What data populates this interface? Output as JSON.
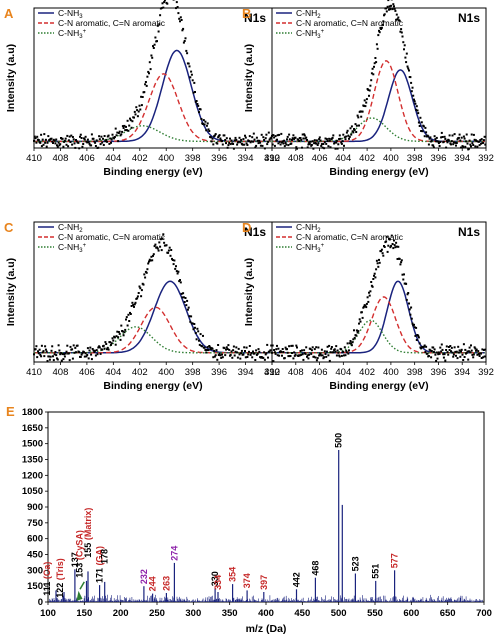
{
  "colors": {
    "panel_letter": "#e8841d",
    "nh2": "#1a237e",
    "aromatic": "#d32f2f",
    "nh3": "#2e7d32",
    "data": "#000000",
    "ms_line": "#1a237e",
    "label_black": "#000000",
    "label_red": "#c62828",
    "label_purple": "#8e24aa",
    "arrow": "#2e7d32"
  },
  "chart_data": [
    {
      "id": "A",
      "type": "line",
      "letter": "A",
      "title": "N1s",
      "xlabel": "Binding energy (eV)",
      "ylabel": "Intensity (a.u)",
      "xlim": [
        410,
        392
      ],
      "x_reversed": true,
      "xticks": [
        "410",
        "408",
        "406",
        "404",
        "402",
        "400",
        "398",
        "396",
        "394",
        "392"
      ],
      "legend": [
        {
          "label": "C-NH",
          "sub": "3",
          "sup": "",
          "style": "solid",
          "color": "#1a237e"
        },
        {
          "label": "C-N aromatic, C=N aromatic",
          "sub": "",
          "sup": "",
          "style": "dashed",
          "color": "#d32f2f"
        },
        {
          "label": "C-NH",
          "sub": "3",
          "sup": "+",
          "style": "dotted",
          "color": "#2e7d32"
        }
      ],
      "peaks": [
        {
          "name": "C-NH",
          "center": 399.2,
          "height": 0.7,
          "width": 1.1
        },
        {
          "name": "C-N aromatic, C=N aromatic",
          "center": 400.2,
          "height": 0.52,
          "width": 1.1
        },
        {
          "name": "C-NH",
          "center": 401.8,
          "height": 0.12,
          "width": 1.3
        }
      ],
      "baseline": 0.02,
      "ylim": [
        0,
        1
      ]
    },
    {
      "id": "B",
      "type": "line",
      "letter": "B",
      "title": "N1s",
      "xlabel": "Binding energy (eV)",
      "ylabel": "Intensity (a.u)",
      "xlim": [
        410,
        392
      ],
      "x_reversed": true,
      "xticks": [
        "410",
        "408",
        "406",
        "404",
        "402",
        "400",
        "398",
        "396",
        "394",
        "392"
      ],
      "legend": [
        {
          "label": "C-NH",
          "sub": "2",
          "sup": "",
          "style": "solid",
          "color": "#1a237e"
        },
        {
          "label": "C-N aromatic, C=N aromatic",
          "sub": "",
          "sup": "",
          "style": "dashed",
          "color": "#d32f2f"
        },
        {
          "label": "C-NH",
          "sub": "3",
          "sup": "+",
          "style": "dotted",
          "color": "#2e7d32"
        }
      ],
      "peaks": [
        {
          "name": "C-NH",
          "center": 399.2,
          "height": 0.55,
          "width": 1.0
        },
        {
          "name": "C-N aromatic, C=N aromatic",
          "center": 400.4,
          "height": 0.62,
          "width": 1.0
        },
        {
          "name": "C-NH",
          "center": 401.6,
          "height": 0.18,
          "width": 1.2
        }
      ],
      "baseline": 0.02,
      "ylim": [
        0,
        1
      ]
    },
    {
      "id": "C",
      "type": "line",
      "letter": "C",
      "title": "N1s",
      "xlabel": "Binding energy (eV)",
      "ylabel": "Intensity (a.u)",
      "xlim": [
        410,
        392
      ],
      "x_reversed": true,
      "xticks": [
        "410",
        "408",
        "406",
        "404",
        "402",
        "400",
        "398",
        "396",
        "394",
        "392"
      ],
      "legend": [
        {
          "label": "C-NH",
          "sub": "2",
          "sup": "",
          "style": "solid",
          "color": "#1a237e"
        },
        {
          "label": "C-N aromatic, C=N aromatic",
          "sub": "",
          "sup": "",
          "style": "dashed",
          "color": "#d32f2f"
        },
        {
          "label": "C-NH",
          "sub": "3",
          "sup": "+",
          "style": "dotted",
          "color": "#2e7d32"
        }
      ],
      "peaks": [
        {
          "name": "C-NH",
          "center": 399.7,
          "height": 0.55,
          "width": 1.2
        },
        {
          "name": "C-N aromatic, C=N aromatic",
          "center": 400.8,
          "height": 0.35,
          "width": 1.1
        },
        {
          "name": "C-NH",
          "center": 402.3,
          "height": 0.2,
          "width": 1.2
        }
      ],
      "baseline": 0.04,
      "ylim": [
        0,
        1
      ]
    },
    {
      "id": "D",
      "type": "line",
      "letter": "D",
      "title": "N1s",
      "xlabel": "Binding energy (eV)",
      "ylabel": "Intensity (a.u)",
      "xlim": [
        410,
        392
      ],
      "x_reversed": true,
      "xticks": [
        "410",
        "408",
        "406",
        "404",
        "402",
        "400",
        "398",
        "396",
        "394",
        "392"
      ],
      "legend": [
        {
          "label": "C-NH",
          "sub": "2",
          "sup": "",
          "style": "solid",
          "color": "#1a237e"
        },
        {
          "label": "C-N aromatic, C=N aromatic",
          "sub": "",
          "sup": "",
          "style": "dashed",
          "color": "#d32f2f"
        },
        {
          "label": "C-NH",
          "sub": "3",
          "sup": "+",
          "style": "dotted",
          "color": "#2e7d32"
        }
      ],
      "peaks": [
        {
          "name": "C-NH",
          "center": 399.4,
          "height": 0.55,
          "width": 0.9
        },
        {
          "name": "C-N aromatic, C=N aromatic",
          "center": 400.6,
          "height": 0.43,
          "width": 1.0
        },
        {
          "name": "C-NH",
          "center": 401.7,
          "height": 0.25,
          "width": 1.0
        }
      ],
      "baseline": 0.04,
      "ylim": [
        0,
        1
      ]
    },
    {
      "id": "E",
      "type": "bar",
      "letter": "E",
      "xlabel": "m/z (Da)",
      "ylabel": "",
      "xlim": [
        100,
        700
      ],
      "ylim": [
        0,
        1800
      ],
      "xticks": [
        "100",
        "150",
        "200",
        "250",
        "300",
        "350",
        "400",
        "450",
        "500",
        "550",
        "600",
        "650",
        "700"
      ],
      "yticks": [
        "0",
        "150",
        "300",
        "450",
        "600",
        "750",
        "900",
        "1050",
        "1200",
        "1350",
        "1500",
        "1650",
        "1800"
      ],
      "peaks": [
        {
          "mz": 111,
          "intensity": 110
        },
        {
          "mz": 122,
          "intensity": 95
        },
        {
          "mz": 137,
          "intensity": 310
        },
        {
          "mz": 153,
          "intensity": 200
        },
        {
          "mz": 155,
          "intensity": 290
        },
        {
          "mz": 171,
          "intensity": 160
        },
        {
          "mz": 178,
          "intensity": 190
        },
        {
          "mz": 232,
          "intensity": 150
        },
        {
          "mz": 244,
          "intensity": 80
        },
        {
          "mz": 263,
          "intensity": 85
        },
        {
          "mz": 274,
          "intensity": 370
        },
        {
          "mz": 330,
          "intensity": 130
        },
        {
          "mz": 334,
          "intensity": 95
        },
        {
          "mz": 354,
          "intensity": 170
        },
        {
          "mz": 374,
          "intensity": 110
        },
        {
          "mz": 397,
          "intensity": 95
        },
        {
          "mz": 442,
          "intensity": 120
        },
        {
          "mz": 468,
          "intensity": 230
        },
        {
          "mz": 500,
          "intensity": 1440
        },
        {
          "mz": 505,
          "intensity": 920
        },
        {
          "mz": 523,
          "intensity": 270
        },
        {
          "mz": 551,
          "intensity": 200
        },
        {
          "mz": 577,
          "intensity": 300
        }
      ],
      "annotations": [
        {
          "text": "111 (Ca)",
          "mz": 111,
          "colors": [
            "black",
            "red"
          ],
          "parts": [
            "111 ",
            "(Ca)"
          ]
        },
        {
          "text": "122 (Tris)",
          "mz": 122,
          "colors": [
            "black",
            "red"
          ],
          "parts": [
            "122 ",
            "(Tris)"
          ]
        },
        {
          "text": "137",
          "mz": 137,
          "colors": [
            "black"
          ],
          "parts": [
            "137"
          ]
        },
        {
          "text": "153 (CySA)",
          "mz": 153,
          "colors": [
            "black",
            "red"
          ],
          "parts": [
            "153 ",
            "(CySA)"
          ]
        },
        {
          "text": "155 (Matrix)",
          "mz": 155,
          "colors": [
            "black",
            "red"
          ],
          "parts": [
            "155 ",
            "(Matrix)"
          ]
        },
        {
          "text": "171 (GA)",
          "mz": 171,
          "colors": [
            "black",
            "red"
          ],
          "parts": [
            "171 ",
            "(GA)"
          ]
        },
        {
          "text": "178",
          "mz": 178,
          "colors": [
            "black"
          ],
          "parts": [
            "178"
          ]
        },
        {
          "text": "232",
          "mz": 232,
          "colors": [
            "purple"
          ],
          "parts": [
            "232"
          ]
        },
        {
          "text": "244",
          "mz": 244,
          "colors": [
            "red"
          ],
          "parts": [
            "244"
          ]
        },
        {
          "text": "263",
          "mz": 263,
          "colors": [
            "red"
          ],
          "parts": [
            "263"
          ]
        },
        {
          "text": "274",
          "mz": 274,
          "colors": [
            "purple"
          ],
          "parts": [
            "274"
          ]
        },
        {
          "text": "330",
          "mz": 330,
          "colors": [
            "black"
          ],
          "parts": [
            "330"
          ]
        },
        {
          "text": "334",
          "mz": 334,
          "colors": [
            "red"
          ],
          "parts": [
            "334"
          ]
        },
        {
          "text": "354",
          "mz": 354,
          "colors": [
            "red"
          ],
          "parts": [
            "354"
          ]
        },
        {
          "text": "374",
          "mz": 374,
          "colors": [
            "red"
          ],
          "parts": [
            "374"
          ]
        },
        {
          "text": "397",
          "mz": 397,
          "colors": [
            "red"
          ],
          "parts": [
            "397"
          ]
        },
        {
          "text": "442",
          "mz": 442,
          "colors": [
            "black"
          ],
          "parts": [
            "442"
          ]
        },
        {
          "text": "468",
          "mz": 468,
          "colors": [
            "black"
          ],
          "parts": [
            "468"
          ]
        },
        {
          "text": "500",
          "mz": 500,
          "colors": [
            "black"
          ],
          "parts": [
            "500"
          ]
        },
        {
          "text": "523",
          "mz": 523,
          "colors": [
            "black"
          ],
          "parts": [
            "523"
          ]
        },
        {
          "text": "551",
          "mz": 551,
          "colors": [
            "black"
          ],
          "parts": [
            "551"
          ]
        },
        {
          "text": "577",
          "mz": 577,
          "colors": [
            "red"
          ],
          "parts": [
            "577"
          ]
        }
      ]
    }
  ]
}
